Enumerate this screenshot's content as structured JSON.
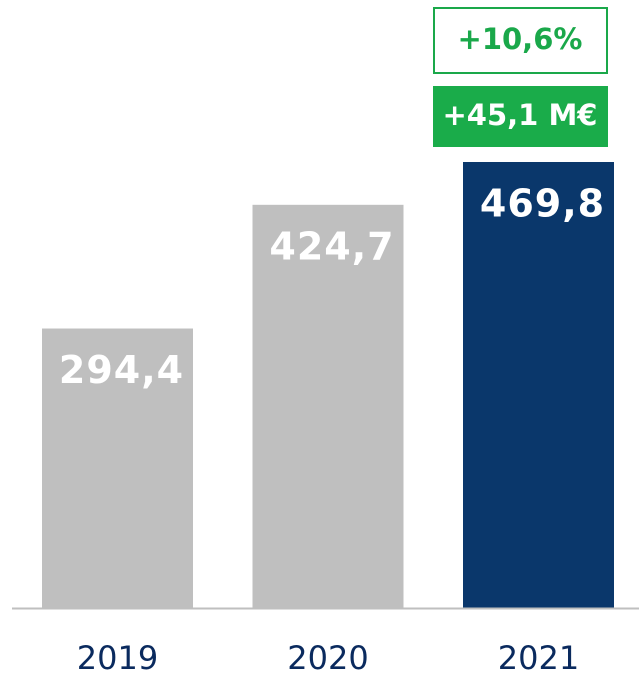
{
  "chart_data": {
    "type": "bar",
    "categories": [
      "2019",
      "2020",
      "2021"
    ],
    "values": [
      294.4,
      424.7,
      469.8
    ],
    "value_labels": [
      "294,4",
      "424,7",
      "469,8"
    ],
    "colors": [
      "#bfbfbf",
      "#bfbfbf",
      "#0a376b"
    ],
    "annotations": [
      "+10,6%",
      "+45,1 M€"
    ]
  }
}
